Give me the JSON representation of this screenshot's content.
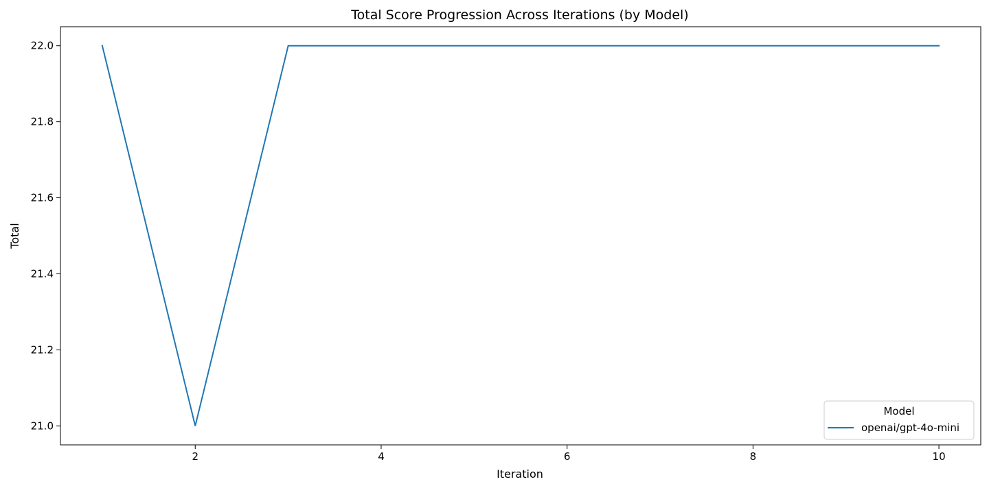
{
  "chart_data": {
    "type": "line",
    "title": "Total Score Progression Across Iterations (by Model)",
    "xlabel": "Iteration",
    "ylabel": "Total",
    "xlim": [
      0.55,
      10.45
    ],
    "ylim": [
      20.95,
      22.05
    ],
    "xticks": [
      2,
      4,
      6,
      8,
      10
    ],
    "yticks": [
      21.0,
      21.2,
      21.4,
      21.6,
      21.8,
      22.0
    ],
    "ytick_labels": [
      "21.0",
      "21.2",
      "21.4",
      "21.6",
      "21.8",
      "22.0"
    ],
    "grid": false,
    "legend": {
      "title": "Model",
      "placement": "lower-right"
    },
    "x": [
      1,
      2,
      3,
      4,
      5,
      6,
      7,
      8,
      9,
      10
    ],
    "series": [
      {
        "name": "openai/gpt-4o-mini",
        "color": "#1f77b4",
        "values": [
          22,
          21,
          22,
          22,
          22,
          22,
          22,
          22,
          22,
          22
        ]
      }
    ]
  }
}
